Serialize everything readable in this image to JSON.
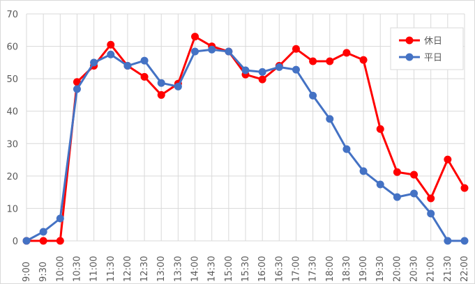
{
  "chart_data": {
    "type": "line",
    "categories": [
      "9:00",
      "9:30",
      "10:00",
      "10:30",
      "11:00",
      "11:30",
      "12:00",
      "12:30",
      "13:00",
      "13:30",
      "14:00",
      "14:30",
      "15:00",
      "15:30",
      "16:00",
      "16:30",
      "17:00",
      "17:30",
      "18:00",
      "18:30",
      "19:00",
      "19:30",
      "20:00",
      "20:30",
      "21:00",
      "21:30",
      "22:00"
    ],
    "series": [
      {
        "name": "休日",
        "color": "#ff0000",
        "values": [
          0,
          0,
          0,
          49,
          54,
          60.5,
          54,
          50.6,
          45,
          48.5,
          63,
          60,
          58.4,
          51.3,
          49.8,
          54,
          59.2,
          55.4,
          55.4,
          58,
          55.8,
          34.5,
          21.2,
          20.4,
          13.1,
          25.1,
          16.3
        ]
      },
      {
        "name": "平日",
        "color": "#4472c4",
        "values": [
          0,
          2.8,
          6.9,
          46.8,
          55,
          57.5,
          54,
          55.6,
          48.7,
          47.6,
          58.4,
          59,
          58.4,
          52.6,
          52.1,
          53.6,
          52.8,
          44.8,
          37.6,
          28.3,
          21.5,
          17.4,
          13.5,
          14.6,
          8.4,
          0,
          0
        ]
      }
    ],
    "ylim": [
      0,
      70
    ],
    "yticks": [
      0,
      10,
      20,
      30,
      40,
      50,
      60,
      70
    ],
    "grid": true,
    "legend": "top-right"
  }
}
